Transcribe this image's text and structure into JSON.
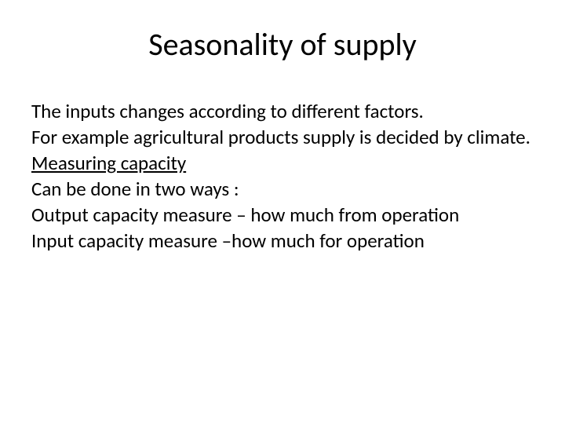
{
  "slide": {
    "title": "Seasonality of supply",
    "line1": "The inputs changes according to different factors.",
    "line2": "For example agricultural products supply is decided by climate.",
    "line3": "Measuring capacity ",
    "line4": "Can be done in two ways :",
    "line5": "Output capacity measure – how much from operation",
    "line6": "Input capacity measure –how much for operation"
  },
  "style": {
    "background_color": "#ffffff",
    "text_color": "#000000",
    "title_fontsize": 40,
    "body_fontsize": 25,
    "font_family": "Calibri"
  }
}
